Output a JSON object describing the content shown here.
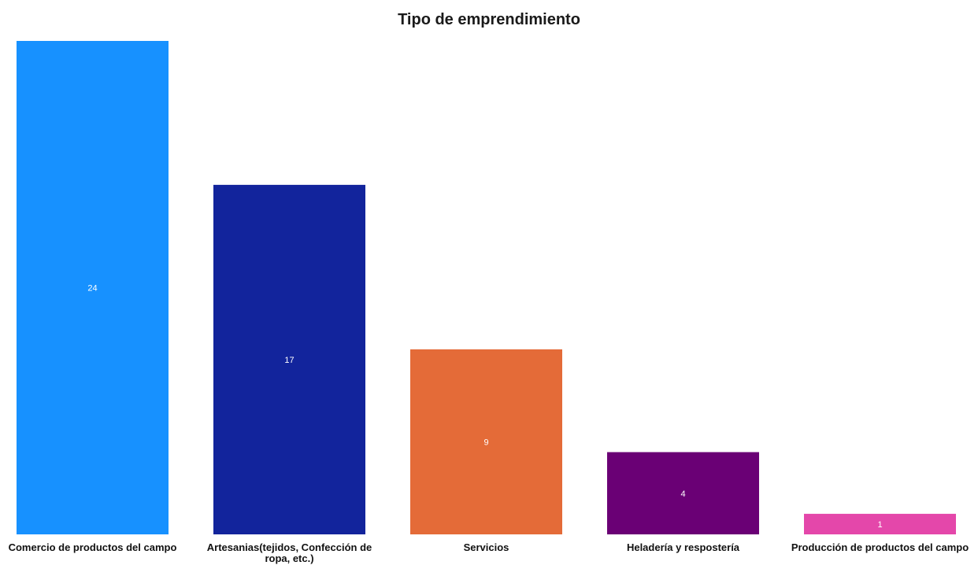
{
  "chart_data": {
    "type": "bar",
    "title": "Tipo de emprendimiento",
    "xlabel": "",
    "ylabel": "",
    "categories": [
      "Comercio de productos del campo",
      "Artesanias(tejidos, Confección de ropa, etc.)",
      "Servicios",
      "Heladería y respostería",
      "Producción de productos del campo"
    ],
    "values": [
      24,
      17,
      9,
      4,
      1
    ],
    "value_labels": [
      "24",
      "17",
      "9",
      "4",
      "1"
    ],
    "colors": [
      "#1791FF",
      "#12249C",
      "#E46B38",
      "#6A0075",
      "#E447AA"
    ],
    "ylim": [
      0,
      24
    ],
    "grid": false,
    "legend": "none"
  }
}
